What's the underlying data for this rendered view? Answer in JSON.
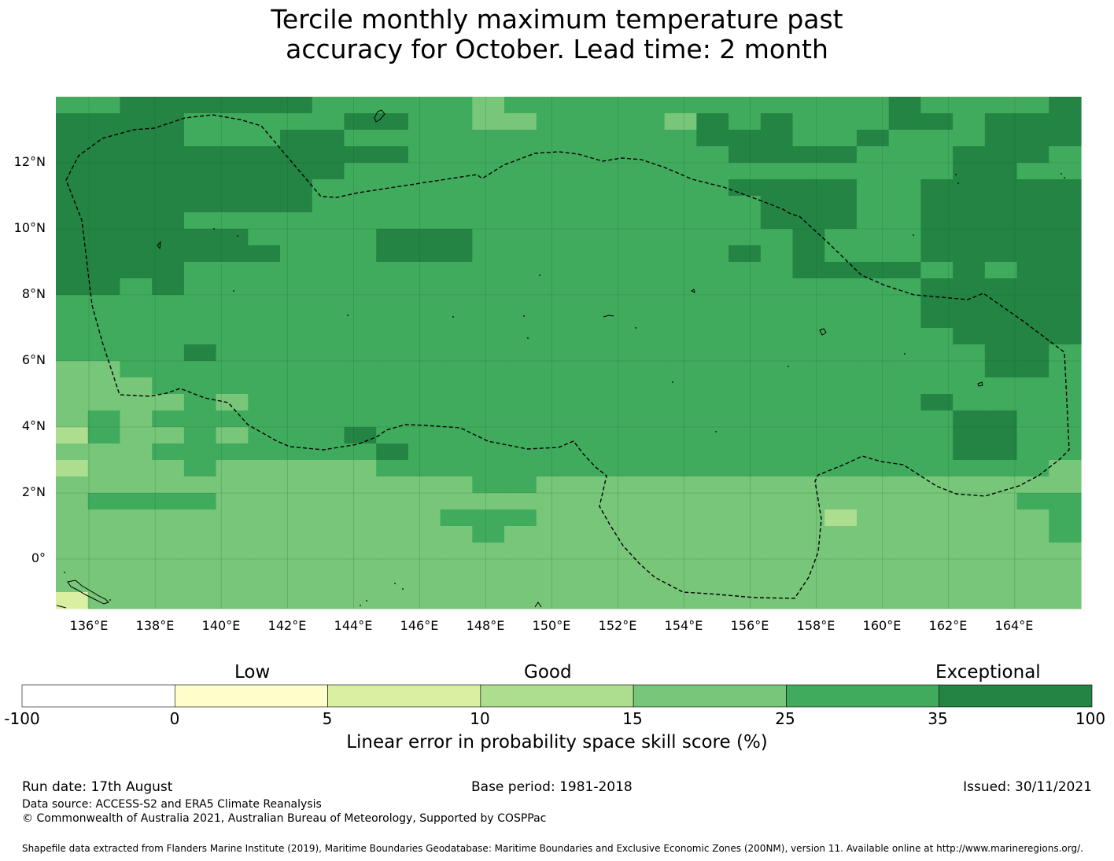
{
  "title": {
    "line1": "Tercile monthly maximum temperature past",
    "line2": "accuracy for October. Lead time: 2 month"
  },
  "map": {
    "lon_range": [
      135,
      166
    ],
    "lat_range": [
      -1.5,
      14
    ],
    "lat_ticks": [
      "12°N",
      "10°N",
      "8°N",
      "6°N",
      "4°N",
      "2°N",
      "0°"
    ],
    "lon_ticks": [
      "136°E",
      "138°E",
      "140°E",
      "142°E",
      "144°E",
      "146°E",
      "148°E",
      "150°E",
      "152°E",
      "154°E",
      "156°E",
      "158°E",
      "160°E",
      "162°E",
      "164°E"
    ],
    "grid_shown": true,
    "boundary_line": "dashed",
    "skill_grid_classes": [
      "55666666555554555555555555655556",
      "66665555566554455554656555665666",
      "66665556655555555555666556555666",
      "66666666666555555555566665556665",
      "66666666655555555555555555556655",
      "66666666555555555555566665566666",
      "66666666555555555555556665566666",
      "66665555555555555555556665566666",
      "66666655556665555555555655566666",
      "66666665556665555555565655566666",
      "66665555555555555555555666656566",
      "66565555555555555555555555566666",
      "55555555555555555555555555566666",
      "55555555555555555555555555566666",
      "55555555555555555555555555556666",
      "55556555555555555555555555555665",
      "44555555555555555555555555555665",
      "44455555555555555555555555555555",
      "44445455555555555555555555565555",
      "45455555555555555555555555556655",
      "35445455565555555555555555556655",
      "44455555556555555555555555556655",
      "34445444445555555555555555555554",
      "44444444444445544444444444444444",
      "45555444444444444444444444444455",
      "44444444444455544444444434444445",
      "44444444444445444444444444444445",
      "44444444444444444444444444444444",
      "44444444444444444444444444444444",
      "44444444444444444444444444444444",
      "24444444444444444444444444444444"
    ]
  },
  "colorbar": {
    "categories": [
      "Low",
      "Good",
      "Exceptional"
    ],
    "ticks": [
      "-100",
      "0",
      "5",
      "10",
      "15",
      "25",
      "35",
      "100"
    ],
    "colors": [
      "#ffffff",
      "#ffffcc",
      "#d9f0a3",
      "#addd8e",
      "#78c679",
      "#41ab5d",
      "#238443"
    ],
    "label": "Linear error in probability space skill score (%)"
  },
  "footer": {
    "run_date": "Run date: 17th August",
    "base_period": "Base period: 1981-2018",
    "issued": "Issued: 30/11/2021",
    "data_source": "Data source: ACCESS-S2 and ERA5 Climate Reanalysis",
    "copyright": "© Commonwealth of Australia 2021, Australian Bureau of Meteorology, Supported by COSPPac",
    "shapefile": "Shapefile data extracted from Flanders Marine Institute (2019), Maritime Boundaries Geodatabase: Maritime Boundaries and Exclusive Economic Zones (200NM), version 11. Available online at http://www.marineregions.org/."
  }
}
